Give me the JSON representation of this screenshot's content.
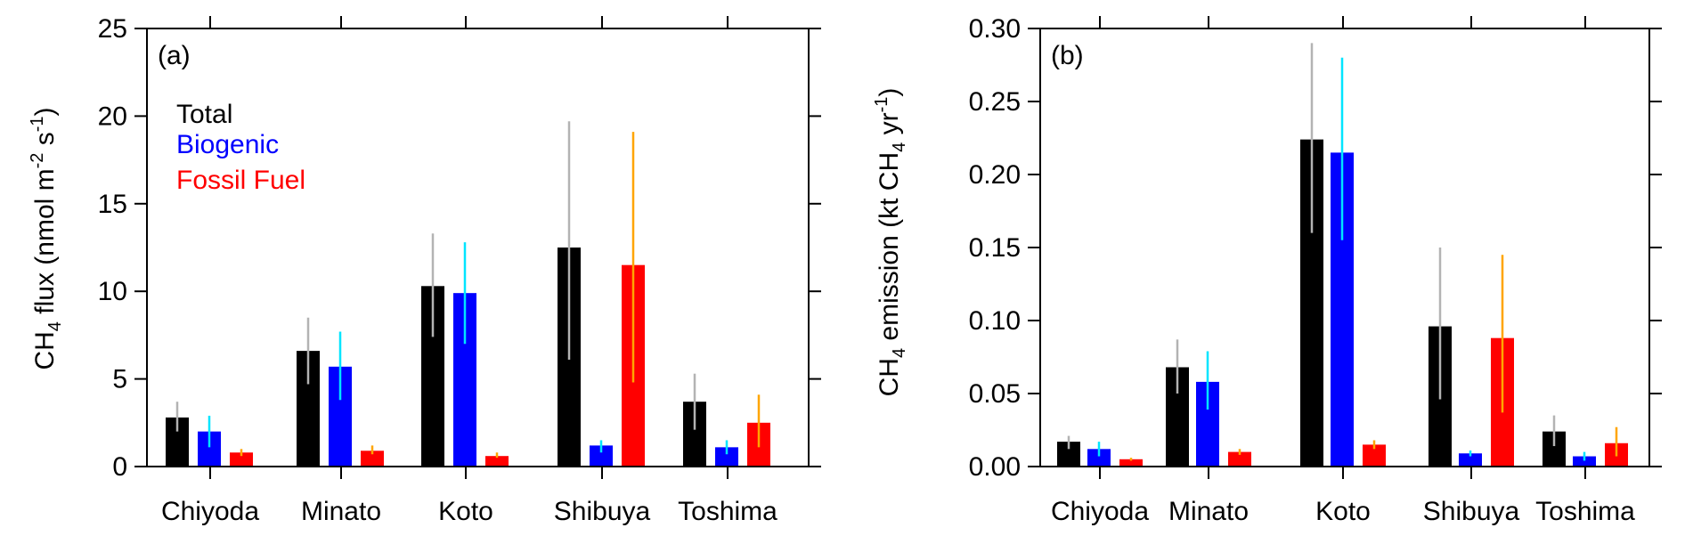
{
  "chart_data": [
    {
      "type": "bar",
      "panel_label": "(a)",
      "ylabel": {
        "main": "CH",
        "sub": "4",
        "mid": " flux (nmol m",
        "sup1": "-2",
        "mid2": " s",
        "sup2": "-1",
        "end": ")"
      },
      "ylim": [
        0,
        25
      ],
      "yticks": [
        "0",
        "5",
        "10",
        "15",
        "20",
        "25"
      ],
      "yticks_values": [
        0,
        5,
        10,
        15,
        20,
        25
      ],
      "categories": [
        "Chiyoda",
        "Minato",
        "Koto",
        "Shibuya",
        "Toshima"
      ],
      "grid": false,
      "legend": {
        "placement": "top-left",
        "entries": [
          "Total",
          "Biogenic",
          "Fossil Fuel"
        ]
      },
      "series": [
        {
          "name": "Total",
          "color": "#000000",
          "error_color": "#b3b3b3",
          "values": [
            2.8,
            6.6,
            10.3,
            12.5,
            3.7
          ],
          "err_low": [
            2.0,
            4.7,
            7.4,
            6.1,
            2.1
          ],
          "err_high": [
            3.7,
            8.5,
            13.3,
            19.7,
            5.3
          ]
        },
        {
          "name": "Biogenic",
          "color": "#0000ff",
          "error_color": "#00e5ff",
          "values": [
            2.0,
            5.7,
            9.9,
            1.2,
            1.1
          ],
          "err_low": [
            1.1,
            3.8,
            7.0,
            0.8,
            0.7
          ],
          "err_high": [
            2.9,
            7.7,
            12.8,
            1.5,
            1.5
          ]
        },
        {
          "name": "Fossil Fuel",
          "color": "#ff0000",
          "error_color": "#ffa500",
          "values": [
            0.8,
            0.9,
            0.6,
            11.5,
            2.5
          ],
          "err_low": [
            0.6,
            0.7,
            0.5,
            4.8,
            1.1
          ],
          "err_high": [
            1.0,
            1.2,
            0.8,
            19.1,
            4.1
          ]
        }
      ]
    },
    {
      "type": "bar",
      "panel_label": "(b)",
      "ylabel": {
        "main": "CH",
        "sub": "4",
        "mid": " emission (kt CH",
        "sub2": "4",
        "mid2": " yr",
        "sup1": "-1",
        "end": ")"
      },
      "ylim": [
        0,
        0.3
      ],
      "yticks": [
        "0.00",
        "0.05",
        "0.10",
        "0.15",
        "0.20",
        "0.25",
        "0.30"
      ],
      "yticks_values": [
        0,
        0.05,
        0.1,
        0.15,
        0.2,
        0.25,
        0.3
      ],
      "categories": [
        "Chiyoda",
        "Minato",
        "Koto",
        "Shibuya",
        "Toshima"
      ],
      "grid": false,
      "series": [
        {
          "name": "Total",
          "color": "#000000",
          "error_color": "#b3b3b3",
          "values": [
            0.017,
            0.068,
            0.224,
            0.096,
            0.024
          ],
          "err_low": [
            0.012,
            0.05,
            0.16,
            0.046,
            0.014
          ],
          "err_high": [
            0.021,
            0.087,
            0.29,
            0.15,
            0.035
          ]
        },
        {
          "name": "Biogenic",
          "color": "#0000ff",
          "error_color": "#00e5ff",
          "values": [
            0.012,
            0.058,
            0.215,
            0.009,
            0.007
          ],
          "err_low": [
            0.007,
            0.039,
            0.155,
            0.007,
            0.004
          ],
          "err_high": [
            0.017,
            0.079,
            0.28,
            0.011,
            0.01
          ]
        },
        {
          "name": "Fossil Fuel",
          "color": "#ff0000",
          "error_color": "#ffa500",
          "values": [
            0.005,
            0.01,
            0.015,
            0.088,
            0.016
          ],
          "err_low": [
            0.004,
            0.008,
            0.012,
            0.037,
            0.007
          ],
          "err_high": [
            0.006,
            0.012,
            0.018,
            0.145,
            0.027
          ]
        }
      ]
    }
  ]
}
